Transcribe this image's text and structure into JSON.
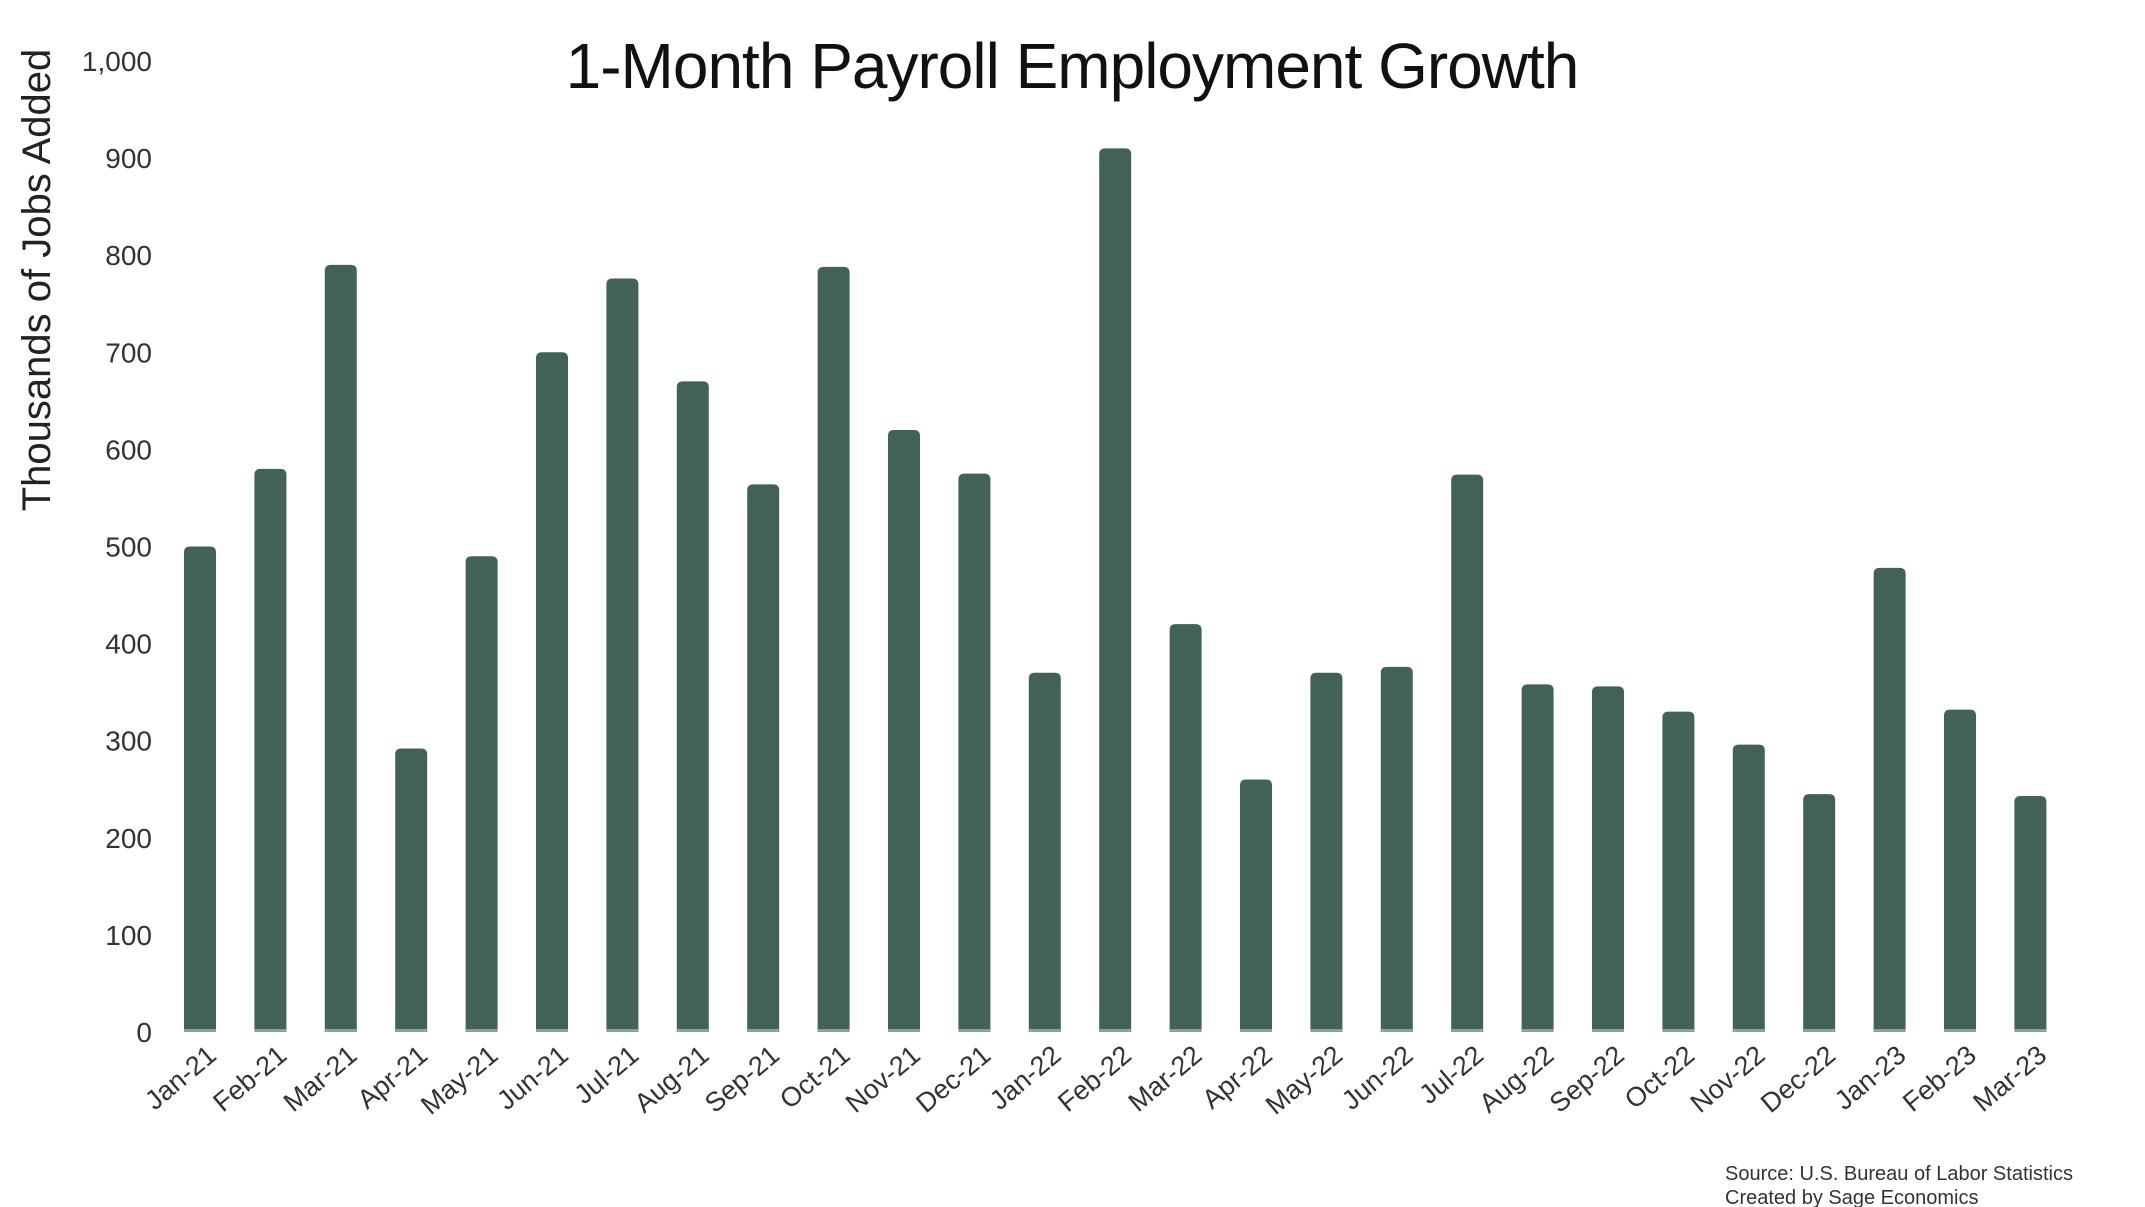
{
  "chart_data": {
    "type": "bar",
    "title": "1-Month Payroll Employment Growth",
    "ylabel": "Thousands of Jobs Added",
    "xlabel": "",
    "ylim": [
      0,
      1000
    ],
    "yticks": [
      "0",
      "100",
      "200",
      "300",
      "400",
      "500",
      "600",
      "700",
      "800",
      "900",
      "1,000"
    ],
    "ytick_values": [
      0,
      100,
      200,
      300,
      400,
      500,
      600,
      700,
      800,
      900,
      1000
    ],
    "grid": false,
    "legend": "none",
    "bar_color": "#416159",
    "categories": [
      "Jan-21",
      "Feb-21",
      "Mar-21",
      "Apr-21",
      "May-21",
      "Jun-21",
      "Jul-21",
      "Aug-21",
      "Sep-21",
      "Oct-21",
      "Nov-21",
      "Dec-21",
      "Jan-22",
      "Feb-22",
      "Mar-22",
      "Apr-22",
      "May-22",
      "Jun-22",
      "Jul-22",
      "Aug-22",
      "Sep-22",
      "Oct-22",
      "Nov-22",
      "Dec-22",
      "Jan-23",
      "Feb-23",
      "Mar-23"
    ],
    "values": [
      500,
      580,
      790,
      292,
      490,
      700,
      776,
      670,
      564,
      788,
      620,
      575,
      370,
      910,
      420,
      260,
      370,
      376,
      574,
      358,
      356,
      330,
      296,
      245,
      478,
      332,
      243
    ]
  },
  "source": {
    "line1": "Source: U.S. Bureau of Labor Statistics",
    "line2": "Created by Sage Economics"
  }
}
